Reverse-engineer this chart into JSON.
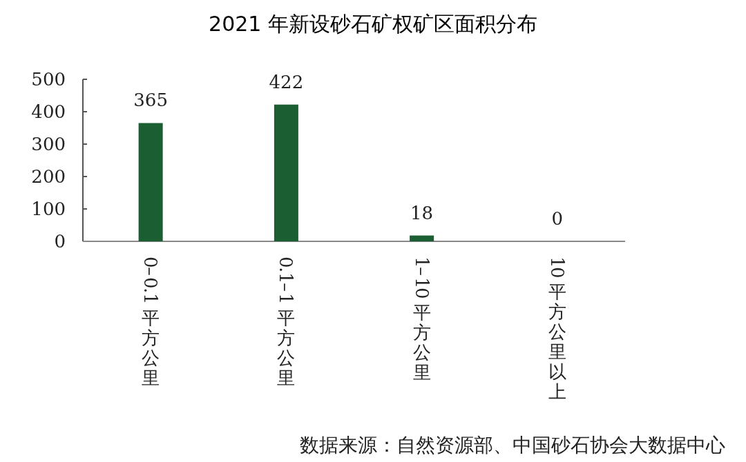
{
  "chart_data": {
    "type": "bar",
    "title": "2021 年新设砂石矿权矿区面积分布",
    "categories": [
      "0–0.1 平方公里",
      "0.1–1 平方公里",
      "1–10 平方公里",
      "10 平方公里以上"
    ],
    "values": [
      365,
      422,
      18,
      0
    ],
    "color": "#1b5e31",
    "ylim": [
      0,
      500
    ],
    "yticks": [
      0,
      100,
      200,
      300,
      400,
      500
    ],
    "data_labels": true,
    "grid": false,
    "annotations": [
      "数据来源：自然资源部、中国砂石协会大数据中心"
    ]
  }
}
